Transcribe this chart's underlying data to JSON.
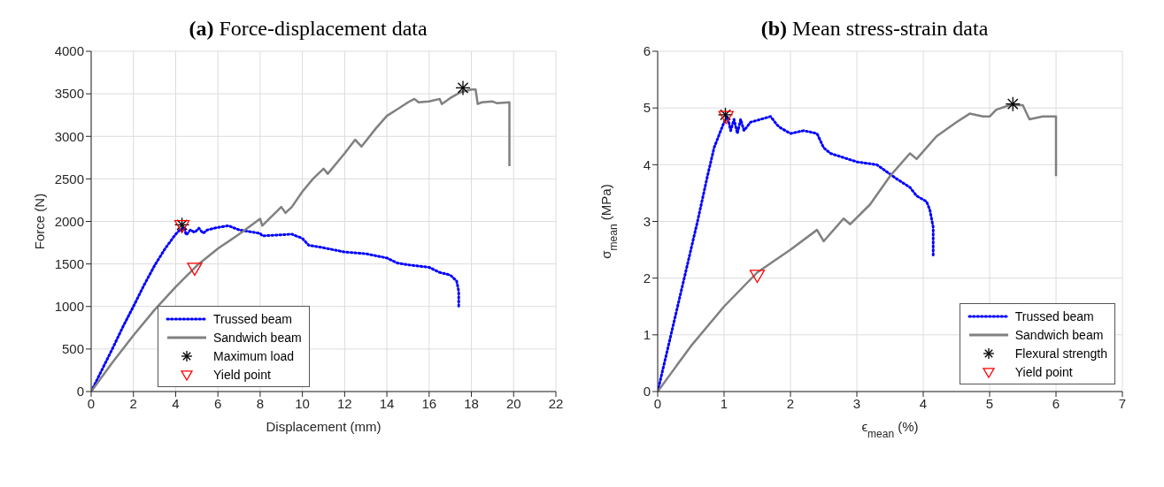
{
  "chart_data": [
    {
      "type": "line",
      "title": "(a) Force-displacement data",
      "xlabel": "Displacement (mm)",
      "ylabel": "Force (N)",
      "xlim": [
        0,
        22
      ],
      "xticks": [
        0,
        2,
        4,
        6,
        8,
        10,
        12,
        14,
        16,
        18,
        20,
        22
      ],
      "ylim": [
        0,
        4000
      ],
      "yticks": [
        0,
        500,
        1000,
        1500,
        2000,
        2500,
        3000,
        3500,
        4000
      ],
      "grid": true,
      "legend": "bottom",
      "series": [
        {
          "name": "Trussed beam",
          "color": "#0000ff",
          "line_style": "dotted",
          "marker": "none",
          "x": [
            0,
            0.5,
            1,
            1.5,
            2,
            2.5,
            3,
            3.5,
            4,
            4.2,
            4.4,
            4.5,
            4.7,
            4.9,
            5.1,
            5.3,
            5.5,
            6,
            6.5,
            7,
            7.5,
            8,
            8.1,
            9.5,
            10,
            10.3,
            11,
            12,
            13,
            14,
            14.5,
            15,
            16,
            16.5,
            17,
            17.3,
            17.4,
            17.4
          ],
          "values": [
            0,
            250,
            500,
            760,
            1000,
            1250,
            1480,
            1680,
            1850,
            1900,
            1930,
            1840,
            1900,
            1870,
            1920,
            1860,
            1900,
            1930,
            1950,
            1900,
            1880,
            1860,
            1830,
            1850,
            1800,
            1720,
            1690,
            1640,
            1620,
            1570,
            1510,
            1490,
            1460,
            1400,
            1370,
            1300,
            1180,
            1000
          ]
        },
        {
          "name": "Sandwich beam",
          "color": "#808080",
          "line_style": "solid",
          "marker": "none",
          "x": [
            0,
            1,
            2,
            3,
            4,
            5,
            6,
            7,
            8,
            8.1,
            9,
            9.2,
            9.5,
            10,
            10.5,
            11,
            11.2,
            12,
            12.5,
            12.8,
            13.5,
            14,
            14.5,
            15,
            15.3,
            15.5,
            16,
            16.5,
            16.6,
            17,
            17.5,
            18,
            18.2,
            18.3,
            18.5,
            19,
            19.2,
            19.8,
            19.8
          ],
          "values": [
            0,
            340,
            660,
            960,
            1230,
            1480,
            1680,
            1850,
            2030,
            1950,
            2170,
            2100,
            2170,
            2350,
            2500,
            2620,
            2560,
            2800,
            2960,
            2880,
            3100,
            3240,
            3320,
            3400,
            3440,
            3400,
            3410,
            3440,
            3380,
            3450,
            3520,
            3550,
            3550,
            3380,
            3400,
            3410,
            3390,
            3400,
            2650
          ]
        },
        {
          "name": "Maximum load",
          "type": "scatter",
          "color": "#000000",
          "marker": "cross",
          "x": [
            4.3,
            17.6
          ],
          "values": [
            1960,
            3570
          ]
        },
        {
          "name": "Yield point",
          "type": "scatter",
          "color": "#ff0000",
          "marker": "triangle",
          "x": [
            4.3,
            4.9
          ],
          "values": [
            1950,
            1450
          ]
        }
      ]
    },
    {
      "type": "line",
      "title": "(b) Mean stress-strain data",
      "xlabel": "ϵ$_{mean}$ (%)",
      "ylabel": "σ$_{mean}$ (MPa)",
      "xlim": [
        0,
        7
      ],
      "xticks": [
        0,
        1,
        2,
        3,
        4,
        5,
        6,
        7
      ],
      "ylim": [
        0,
        6
      ],
      "yticks": [
        0,
        1,
        2,
        3,
        4,
        5,
        6
      ],
      "grid": true,
      "legend": "bottom right",
      "series": [
        {
          "name": "Trussed beam",
          "color": "#0000ff",
          "line_style": "dotted",
          "marker": "none",
          "x": [
            0,
            0.2,
            0.4,
            0.6,
            0.75,
            0.85,
            0.95,
            1.0,
            1.05,
            1.1,
            1.15,
            1.2,
            1.25,
            1.3,
            1.4,
            1.55,
            1.7,
            1.8,
            1.85,
            2,
            2.2,
            2.4,
            2.5,
            2.6,
            3,
            3.3,
            3.6,
            3.8,
            3.9,
            4.05,
            4.1,
            4.15,
            4.15
          ],
          "values": [
            0,
            1,
            2,
            3,
            3.8,
            4.3,
            4.6,
            4.75,
            4.85,
            4.6,
            4.8,
            4.55,
            4.8,
            4.6,
            4.75,
            4.8,
            4.85,
            4.7,
            4.65,
            4.55,
            4.6,
            4.55,
            4.3,
            4.2,
            4.05,
            4,
            3.75,
            3.6,
            3.45,
            3.35,
            3.2,
            2.9,
            2.4
          ]
        },
        {
          "name": "Sandwich beam",
          "color": "#808080",
          "line_style": "solid",
          "marker": "none",
          "x": [
            0,
            0.5,
            1,
            1.5,
            2,
            2.4,
            2.5,
            2.8,
            2.9,
            3.2,
            3.5,
            3.8,
            3.9,
            4.2,
            4.5,
            4.7,
            4.9,
            5,
            5.1,
            5.3,
            5.5,
            5.6,
            5.8,
            6,
            6
          ],
          "values": [
            0,
            0.8,
            1.5,
            2.1,
            2.5,
            2.85,
            2.65,
            3.05,
            2.95,
            3.3,
            3.8,
            4.2,
            4.1,
            4.5,
            4.75,
            4.9,
            4.85,
            4.85,
            4.97,
            5.05,
            5.05,
            4.8,
            4.85,
            4.85,
            3.8
          ]
        },
        {
          "name": "Flexural strength",
          "type": "scatter",
          "color": "#000000",
          "marker": "cross",
          "x": [
            1.02,
            5.35
          ],
          "values": [
            4.88,
            5.07
          ]
        },
        {
          "name": "Yield point",
          "type": "scatter",
          "color": "#ff0000",
          "marker": "triangle",
          "x": [
            1.03,
            1.5
          ],
          "values": [
            4.85,
            2.05
          ]
        }
      ]
    }
  ]
}
